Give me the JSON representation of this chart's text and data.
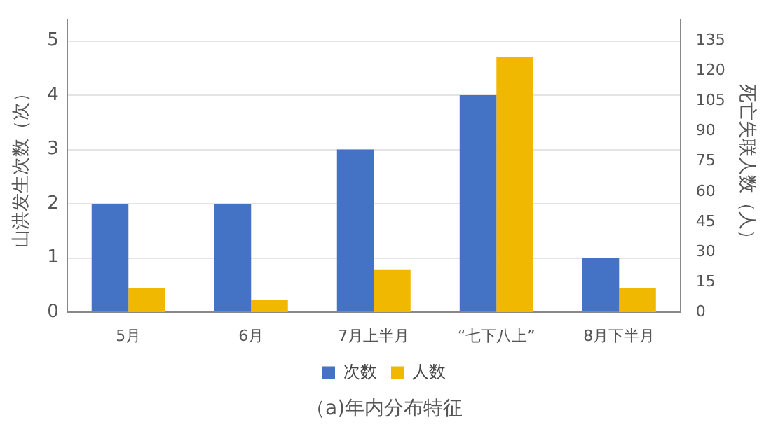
{
  "chart_data": {
    "type": "bar",
    "title": "（a)年内分布特征",
    "categories": [
      "5月",
      "6月",
      "7月上半月",
      "“七下八上”",
      "8月下半月"
    ],
    "series": [
      {
        "name": "次数",
        "color": "#4472c4",
        "values": [
          2,
          2,
          3,
          4,
          1
        ]
      },
      {
        "name": "人数",
        "color": "#f0b800",
        "values": [
          12,
          6,
          21,
          127,
          12
        ],
        "axis": "y2"
      }
    ],
    "ylabel": "山洪发生次数（次）",
    "y2label": "死亡失联人数（人）",
    "ylim": [
      0,
      5.4
    ],
    "yticks": [
      0,
      1,
      2,
      3,
      4,
      5
    ],
    "y2lim": [
      0,
      145.8
    ],
    "y2ticks": [
      0,
      15,
      30,
      45,
      60,
      75,
      90,
      105,
      120,
      135
    ],
    "grid": "y",
    "legend": "bottom"
  }
}
